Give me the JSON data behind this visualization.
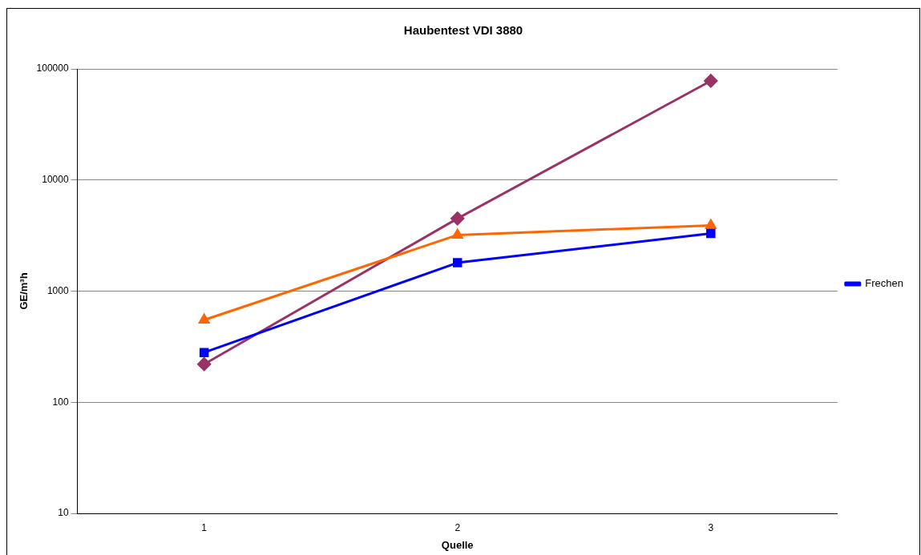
{
  "chart_data": {
    "type": "line",
    "title": "Haubentest VDI 3880",
    "xlabel": "Quelle",
    "ylabel": "GE/m³h",
    "categories": [
      "1",
      "2",
      "3"
    ],
    "log": "y",
    "ylim": [
      10,
      100000
    ],
    "yticks": [
      10,
      100,
      1000,
      10000,
      100000
    ],
    "grid": "y",
    "legend": "right",
    "line_style": "solid",
    "series": [
      {
        "name": "Frechen",
        "color": "#0000ff",
        "marker": "square",
        "values": [
          280,
          1800,
          3300
        ]
      },
      {
        "color": "#ff6600",
        "marker": "triangle",
        "values": [
          550,
          3200,
          3900
        ]
      },
      {
        "color": "#993366",
        "marker": "diamond",
        "values": [
          220,
          4500,
          78000
        ]
      }
    ]
  }
}
